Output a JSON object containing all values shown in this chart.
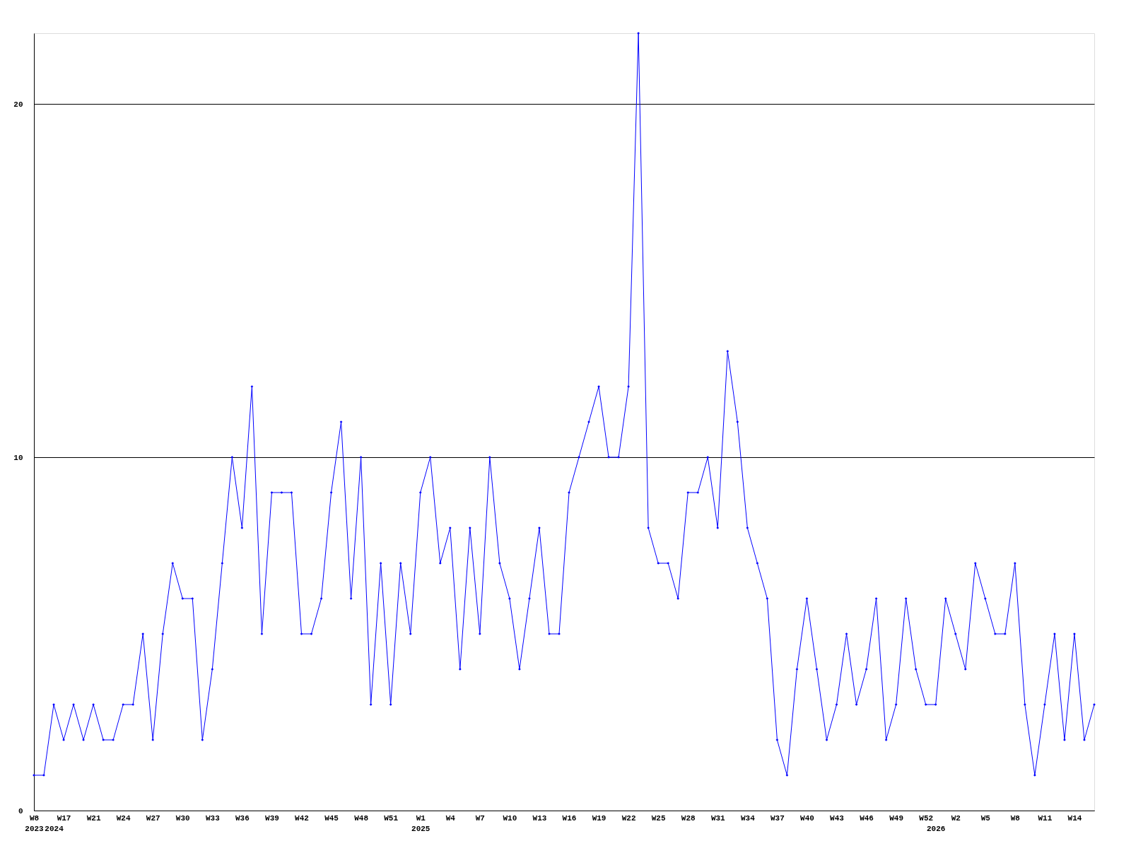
{
  "chart_data": {
    "type": "line",
    "categories": [
      "W8\n2023",
      null,
      "\n2024",
      "W17",
      null,
      null,
      "W21",
      null,
      null,
      "W24",
      null,
      null,
      "W27",
      null,
      null,
      "W30",
      null,
      null,
      "W33",
      null,
      null,
      "W36",
      null,
      null,
      "W39",
      null,
      null,
      "W42",
      null,
      null,
      "W45",
      null,
      null,
      "W48",
      null,
      null,
      "W51",
      null,
      null,
      "W1\n2025",
      null,
      null,
      "W4",
      null,
      null,
      "W7",
      null,
      null,
      "W10",
      null,
      null,
      "W13",
      null,
      null,
      "W16",
      null,
      null,
      "W19",
      null,
      null,
      "W22",
      null,
      null,
      "W25",
      null,
      null,
      "W28",
      null,
      null,
      "W31",
      null,
      null,
      "W34",
      null,
      null,
      "W37",
      null,
      null,
      "W40",
      null,
      null,
      "W43",
      null,
      null,
      "W46",
      null,
      null,
      "W49",
      null,
      null,
      "W52",
      "\n2026",
      null,
      "W2",
      null,
      null,
      "W5",
      null,
      null,
      "W8",
      null,
      null,
      "W11",
      null,
      null,
      "W14",
      null,
      null
    ],
    "series": [
      {
        "color": "#0000ff",
        "values": [
          1,
          1,
          3,
          2,
          3,
          2,
          3,
          2,
          2,
          3,
          3,
          5,
          2,
          5,
          7,
          6,
          6,
          2,
          4,
          7,
          10,
          8,
          12,
          5,
          9,
          9,
          9,
          5,
          5,
          6,
          9,
          11,
          6,
          10,
          3,
          7,
          3,
          7,
          5,
          9,
          10,
          7,
          8,
          4,
          8,
          5,
          10,
          7,
          6,
          4,
          6,
          8,
          5,
          5,
          9,
          10,
          11,
          12,
          10,
          10,
          12,
          22,
          8,
          7,
          7,
          6,
          9,
          9,
          10,
          8,
          13,
          11,
          8,
          7,
          6,
          2,
          1,
          4,
          6,
          4,
          2,
          3,
          5,
          3,
          4,
          6,
          2,
          3,
          6,
          4,
          3,
          3,
          6,
          5,
          4,
          7,
          6,
          5,
          5,
          7,
          3,
          1,
          3,
          5,
          2,
          5,
          2,
          3
        ]
      }
    ],
    "ylim": [
      0,
      22
    ],
    "yticks": [
      0,
      10,
      20
    ],
    "grid": "y",
    "marker": "diamond",
    "line_style": "solid"
  }
}
